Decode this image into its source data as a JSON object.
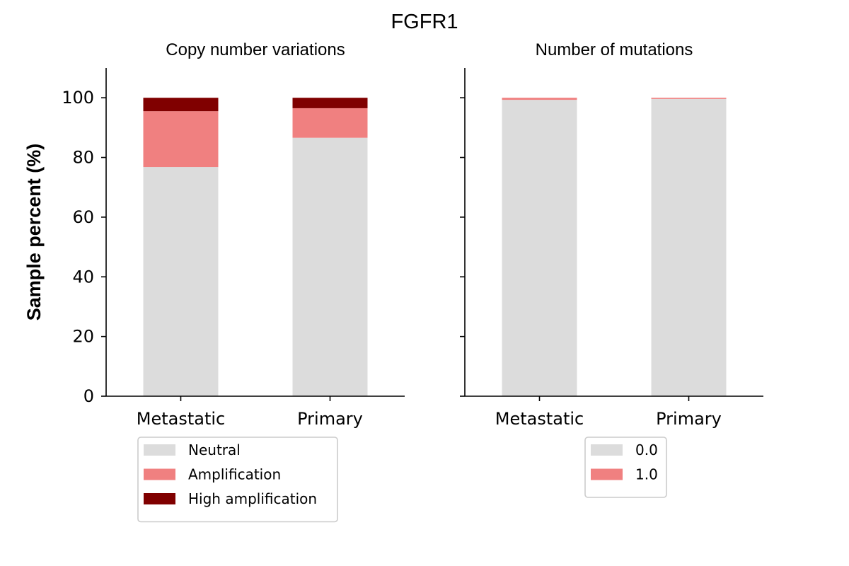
{
  "title": "FGFR1",
  "ylabel": "Sample percent (%)",
  "chart_data": [
    {
      "type": "bar",
      "stacked": true,
      "title": "Copy number variations",
      "xlabel": "",
      "ylabel": "Sample percent (%)",
      "categories": [
        "Metastatic",
        "Primary"
      ],
      "ylim": [
        0,
        110
      ],
      "yticks": [
        0,
        20,
        40,
        60,
        80,
        100
      ],
      "grid": false,
      "legend_position": "below",
      "series": [
        {
          "name": "Neutral",
          "color": "#dcdcdc",
          "values": [
            76.8,
            86.6
          ]
        },
        {
          "name": "Amplification",
          "color": "#f08080",
          "values": [
            18.7,
            9.9
          ]
        },
        {
          "name": "High amplification",
          "color": "#800000",
          "values": [
            4.5,
            3.5
          ]
        }
      ]
    },
    {
      "type": "bar",
      "stacked": true,
      "title": "Number of mutations",
      "xlabel": "",
      "categories": [
        "Metastatic",
        "Primary"
      ],
      "ylim": [
        0,
        110
      ],
      "yticks": [
        0,
        20,
        40,
        60,
        80,
        100
      ],
      "grid": false,
      "legend_position": "below",
      "series": [
        {
          "name": "0.0",
          "color": "#dcdcdc",
          "values": [
            99.3,
            99.6
          ]
        },
        {
          "name": "1.0",
          "color": "#f08080",
          "values": [
            0.7,
            0.4
          ]
        }
      ]
    }
  ]
}
